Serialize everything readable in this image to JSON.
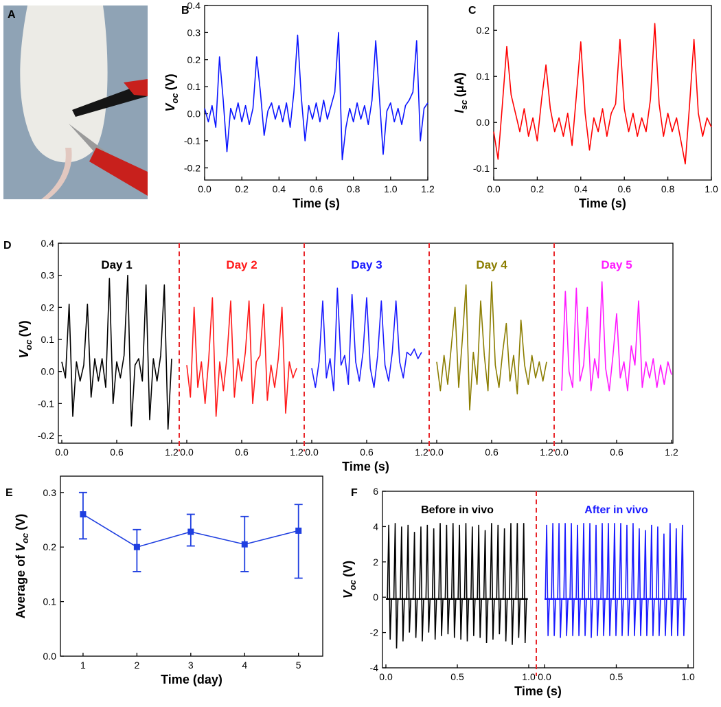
{
  "photo": {
    "panel": "A"
  },
  "chart_data": [
    {
      "panel": "B",
      "type": "line",
      "x": [
        0,
        0.02,
        0.04,
        0.06,
        0.08,
        0.1,
        0.12,
        0.14,
        0.16,
        0.18,
        0.2,
        0.22,
        0.24,
        0.26,
        0.28,
        0.3,
        0.32,
        0.34,
        0.36,
        0.38,
        0.4,
        0.42,
        0.44,
        0.46,
        0.48,
        0.5,
        0.52,
        0.54,
        0.56,
        0.58,
        0.6,
        0.62,
        0.64,
        0.66,
        0.68,
        0.7,
        0.72,
        0.74,
        0.76,
        0.78,
        0.8,
        0.82,
        0.84,
        0.86,
        0.88,
        0.9,
        0.92,
        0.94,
        0.96,
        0.98,
        1,
        1.02,
        1.04,
        1.06,
        1.08,
        1.1,
        1.12,
        1.14,
        1.16,
        1.18,
        1.2
      ],
      "values": [
        0.02,
        -0.03,
        0.03,
        -0.05,
        0.21,
        0.05,
        -0.14,
        0.02,
        -0.02,
        0.04,
        -0.03,
        0.03,
        -0.04,
        0.02,
        0.21,
        0.08,
        -0.08,
        0.01,
        0.04,
        -0.02,
        0.03,
        -0.03,
        0.04,
        -0.05,
        0.08,
        0.29,
        0.06,
        -0.1,
        0.03,
        -0.02,
        0.04,
        -0.03,
        0.05,
        -0.02,
        0.03,
        0.08,
        0.3,
        -0.17,
        -0.05,
        0.02,
        -0.03,
        0.04,
        -0.02,
        0.03,
        -0.04,
        0.05,
        0.27,
        0.06,
        -0.15,
        0.01,
        0.04,
        -0.03,
        0.02,
        -0.04,
        0.03,
        0.05,
        0.08,
        0.27,
        -0.1,
        0.02,
        0.04
      ],
      "color": "#0a14ff",
      "xlabel": "Time (s)",
      "ylabel": {
        "symbol": "V",
        "sub": "oc",
        "unit": "(V)"
      },
      "xlim": [
        0,
        1.2
      ],
      "xticks": [
        {
          "value": 0,
          "label": "0.0"
        },
        0.2,
        0.4,
        0.6,
        0.8,
        {
          "value": 1,
          "label": "1.0"
        },
        1.2
      ],
      "ylim": [
        -0.245,
        0.4
      ],
      "yticks": [
        -0.2,
        -0.1,
        {
          "value": 0,
          "label": "0.0"
        },
        0.1,
        0.2,
        0.3,
        0.4
      ]
    },
    {
      "panel": "C",
      "type": "line",
      "x": [
        0,
        0.02,
        0.04,
        0.06,
        0.08,
        0.1,
        0.12,
        0.14,
        0.16,
        0.18,
        0.2,
        0.22,
        0.24,
        0.26,
        0.28,
        0.3,
        0.32,
        0.34,
        0.36,
        0.38,
        0.4,
        0.42,
        0.44,
        0.46,
        0.48,
        0.5,
        0.52,
        0.54,
        0.56,
        0.58,
        0.6,
        0.62,
        0.64,
        0.66,
        0.68,
        0.7,
        0.72,
        0.74,
        0.76,
        0.78,
        0.8,
        0.82,
        0.84,
        0.86,
        0.88,
        0.9,
        0.92,
        0.94,
        0.96,
        0.98,
        1
      ],
      "values": [
        -0.02,
        -0.08,
        0.04,
        0.165,
        0.06,
        0.02,
        -0.02,
        0.03,
        -0.03,
        0.01,
        -0.04,
        0.05,
        0.125,
        0.03,
        -0.02,
        0.01,
        -0.03,
        0.02,
        -0.05,
        0.06,
        0.175,
        0.02,
        -0.06,
        0.01,
        -0.02,
        0.03,
        -0.03,
        0.02,
        0.04,
        0.18,
        0.03,
        -0.02,
        0.02,
        -0.03,
        0.01,
        -0.02,
        0.05,
        0.215,
        0.04,
        -0.03,
        0.02,
        -0.02,
        0.01,
        -0.04,
        -0.09,
        0.04,
        0.18,
        0.02,
        -0.03,
        0.01,
        -0.01
      ],
      "color": "#ff0000",
      "xlabel": "Time (s)",
      "ylabel": {
        "symbol": "I",
        "sub": "sc",
        "unit": "(μA)"
      },
      "xlim": [
        0,
        1
      ],
      "xticks": [
        {
          "value": 0,
          "label": "0.0"
        },
        0.2,
        0.4,
        0.6,
        0.8,
        {
          "value": 1,
          "label": "1.0"
        }
      ],
      "ylim": [
        -0.125,
        0.254
      ],
      "yticks": [
        -0.1,
        {
          "value": 0,
          "label": "0.0"
        },
        0.1,
        0.2
      ]
    },
    {
      "panel": "D",
      "type": "segmented",
      "x": [
        0,
        0.04,
        0.08,
        0.12,
        0.16,
        0.2,
        0.24,
        0.28,
        0.32,
        0.36,
        0.4,
        0.44,
        0.48,
        0.52,
        0.56,
        0.6,
        0.64,
        0.68,
        0.72,
        0.76,
        0.8,
        0.84,
        0.88,
        0.92,
        0.96,
        1,
        1.04,
        1.08,
        1.12,
        1.16,
        1.2
      ],
      "segments": [
        {
          "label": "Day 1",
          "color": "#000000",
          "values": [
            0.03,
            -0.02,
            0.21,
            -0.14,
            0.03,
            -0.03,
            0.02,
            0.21,
            -0.08,
            0.04,
            -0.03,
            0.04,
            -0.05,
            0.29,
            -0.1,
            0.03,
            -0.02,
            0.05,
            0.3,
            -0.17,
            0.02,
            0.04,
            -0.03,
            0.27,
            -0.15,
            0.04,
            -0.03,
            0.05,
            0.27,
            -0.18,
            0.04
          ]
        },
        {
          "label": "Day 2",
          "color": "#ff1a1a",
          "values": [
            0.02,
            -0.08,
            0.2,
            -0.05,
            0.03,
            -0.1,
            0.04,
            0.23,
            -0.14,
            0.03,
            -0.06,
            0.05,
            0.22,
            -0.08,
            0.04,
            -0.03,
            0.06,
            0.22,
            -0.1,
            0.03,
            0.05,
            0.21,
            -0.09,
            0.02,
            -0.05,
            0.04,
            0.2,
            -0.13,
            0.03,
            -0.02,
            0.01
          ]
        },
        {
          "label": "Day 3",
          "color": "#1a1aff",
          "values": [
            0.01,
            -0.05,
            0.03,
            0.22,
            -0.02,
            0.04,
            -0.06,
            0.26,
            0.02,
            0.05,
            -0.04,
            0.24,
            0.03,
            -0.03,
            0.06,
            0.23,
            0.01,
            -0.05,
            0.05,
            0.22,
            0.02,
            -0.03,
            0.06,
            0.22,
            0.03,
            -0.02,
            0.06,
            0.05,
            0.07,
            0.04,
            0.06
          ]
        },
        {
          "label": "Day 4",
          "color": "#8b7d00",
          "values": [
            0.03,
            -0.06,
            0.05,
            -0.04,
            0.08,
            0.2,
            -0.05,
            0.1,
            0.27,
            -0.12,
            0.06,
            -0.04,
            0.22,
            0.05,
            -0.06,
            0.28,
            0.02,
            -0.05,
            0.06,
            0.15,
            -0.03,
            0.05,
            -0.07,
            0.16,
            0.02,
            -0.04,
            0.05,
            -0.02,
            0.03,
            -0.03,
            0.03
          ]
        },
        {
          "label": "Day 5",
          "color": "#ff1aff",
          "values": [
            -0.06,
            0.25,
            0,
            -0.05,
            0.26,
            -0.03,
            0.02,
            0.2,
            -0.06,
            0.04,
            -0.02,
            0.28,
            0.01,
            -0.06,
            0.05,
            0.18,
            -0.02,
            0.03,
            -0.06,
            0.08,
            0.02,
            0.22,
            -0.05,
            0.03,
            -0.02,
            0.04,
            -0.05,
            0.02,
            -0.04,
            0.03,
            -0.01
          ]
        }
      ],
      "xlabel": "Time (s)",
      "ylabel": {
        "symbol": "V",
        "sub": "oc",
        "unit": "(V)"
      },
      "xlim": [
        0,
        1.2
      ],
      "xticks": [
        {
          "value": 0,
          "label": "0.0"
        },
        0.6,
        1.2
      ],
      "ylim": [
        -0.2,
        0.4
      ],
      "yticks": [
        -0.2,
        -0.1,
        {
          "value": 0,
          "label": "0.0"
        },
        0.1,
        0.2,
        0.3,
        0.4
      ]
    },
    {
      "panel": "E",
      "type": "errorbar",
      "x": [
        1,
        2,
        3,
        4,
        5
      ],
      "values": [
        0.26,
        0.2,
        0.228,
        0.205,
        0.23
      ],
      "error_minus": [
        0.045,
        0.045,
        0.026,
        0.05,
        0.087
      ],
      "error_plus": [
        0.04,
        0.032,
        0.032,
        0.051,
        0.048
      ],
      "color": "#1f3fe0",
      "xlabel": "Time (day)",
      "ylabel": {
        "prefix": "Average of",
        "symbol": "V",
        "sub": "oc",
        "unit": "(V)"
      },
      "xlim": [
        0.58,
        5.45
      ],
      "xticks": [
        1,
        2,
        3,
        4,
        5
      ],
      "ylim": [
        0,
        0.33
      ],
      "yticks": [
        {
          "value": 0,
          "label": "0.0"
        },
        0.1,
        0.2,
        0.3
      ]
    },
    {
      "panel": "F",
      "type": "spikes",
      "segments": [
        {
          "label": "Before in vivo",
          "color": "#000000",
          "baseline": -0.1,
          "x": [
            0.02,
            0.065,
            0.11,
            0.155,
            0.2,
            0.245,
            0.29,
            0.335,
            0.38,
            0.425,
            0.47,
            0.515,
            0.56,
            0.605,
            0.65,
            0.695,
            0.74,
            0.785,
            0.83,
            0.875,
            0.92,
            0.965
          ],
          "peaks": [
            4.1,
            4.2,
            4.0,
            4.1,
            3.7,
            4.0,
            4.1,
            3.9,
            4.2,
            4.1,
            4.2,
            4.1,
            4.2,
            4.0,
            4.1,
            3.8,
            4.2,
            4.1,
            3.9,
            4.2,
            4.2,
            4.2
          ],
          "troughs": [
            -2.4,
            -2.9,
            -2.5,
            -2.0,
            -2.3,
            -2.5,
            -2.0,
            -2.4,
            -2.2,
            -2.1,
            -2.3,
            -2.4,
            -2.5,
            -2.2,
            -2.3,
            -2.6,
            -2.4,
            -2.1,
            -2.5,
            -2.7,
            -2.3,
            -2.6
          ]
        },
        {
          "label": "After in vivo",
          "color": "#1a1aff",
          "baseline": -0.1,
          "x": [
            0.015,
            0.058,
            0.101,
            0.144,
            0.187,
            0.23,
            0.273,
            0.316,
            0.359,
            0.402,
            0.445,
            0.488,
            0.531,
            0.574,
            0.617,
            0.66,
            0.703,
            0.746,
            0.789,
            0.832,
            0.875,
            0.918,
            0.961
          ],
          "peaks": [
            4.1,
            4.2,
            4.2,
            4.2,
            4.2,
            4.1,
            4.2,
            4.2,
            4.1,
            4.2,
            4.2,
            4.2,
            4.2,
            4.1,
            4.2,
            3.9,
            3.8,
            4.1,
            4.0,
            3.6,
            4.2,
            3.9,
            4.1
          ],
          "troughs": [
            -2.2,
            -2.2,
            -2.3,
            -2.2,
            -2.2,
            -2.2,
            -2.2,
            -2.3,
            -2.2,
            -2.2,
            -2.2,
            -2.2,
            -2.2,
            -2.2,
            -2.2,
            -2.2,
            -2.2,
            -2.2,
            -2.2,
            -2.2,
            -2.2,
            -2.2,
            -2.2
          ]
        }
      ],
      "xlabel": "Time (s)",
      "ylabel": {
        "symbol": "V",
        "sub": "oc",
        "unit": "(V)"
      },
      "xlim": [
        0,
        1
      ],
      "xticks": [
        {
          "value": 0,
          "label": "0.0"
        },
        0.5,
        {
          "value": 1,
          "label": "1.0"
        }
      ],
      "ylim": [
        -4,
        6
      ],
      "yticks": [
        -4,
        -2,
        0,
        2,
        4,
        6
      ]
    }
  ]
}
